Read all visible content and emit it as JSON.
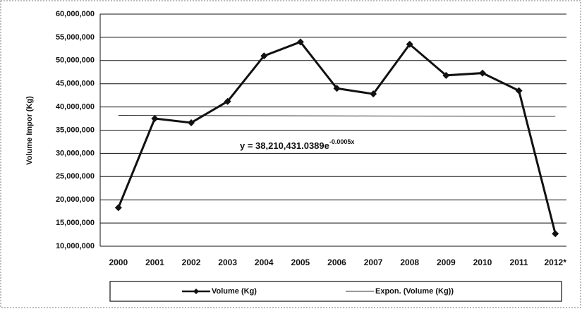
{
  "chart_data": {
    "type": "line",
    "y_label": "Volume Impor (Kg)",
    "categories": [
      "2000",
      "2001",
      "2002",
      "2003",
      "2004",
      "2005",
      "2006",
      "2007",
      "2008",
      "2009",
      "2010",
      "2011",
      "2012*"
    ],
    "series": [
      {
        "name": "Volume (Kg)",
        "color": "#111111",
        "marker": "diamond",
        "values": [
          18300000,
          37500000,
          36600000,
          41200000,
          51000000,
          54000000,
          44000000,
          42800000,
          53500000,
          46800000,
          47300000,
          43500000,
          12700000
        ]
      },
      {
        "name": "Expon. (Volume (Kg))",
        "color": "#333333",
        "marker": "none",
        "values": [
          38190000,
          38170000,
          38150000,
          38130000,
          38110000,
          38090000,
          38080000,
          38060000,
          38040000,
          38020000,
          38000000,
          37980000,
          37960000
        ]
      }
    ],
    "annotation": {
      "text": "y = 38,210,431.0389e",
      "exponent": "-0.0005x"
    },
    "ylim": [
      10000000,
      60000000
    ],
    "yticks": [
      {
        "value": 10000000,
        "label": "10,000,000"
      },
      {
        "value": 15000000,
        "label": "15,000,000"
      },
      {
        "value": 20000000,
        "label": "20,000,000"
      },
      {
        "value": 25000000,
        "label": "25,000,000"
      },
      {
        "value": 30000000,
        "label": "30,000,000"
      },
      {
        "value": 35000000,
        "label": "35,000,000"
      },
      {
        "value": 40000000,
        "label": "40,000,000"
      },
      {
        "value": 45000000,
        "label": "45,000,000"
      },
      {
        "value": 50000000,
        "label": "50,000,000"
      },
      {
        "value": 55000000,
        "label": "55,000,000"
      },
      {
        "value": 60000000,
        "label": "60,000,000"
      }
    ],
    "grid": true,
    "legend": "bottom"
  }
}
